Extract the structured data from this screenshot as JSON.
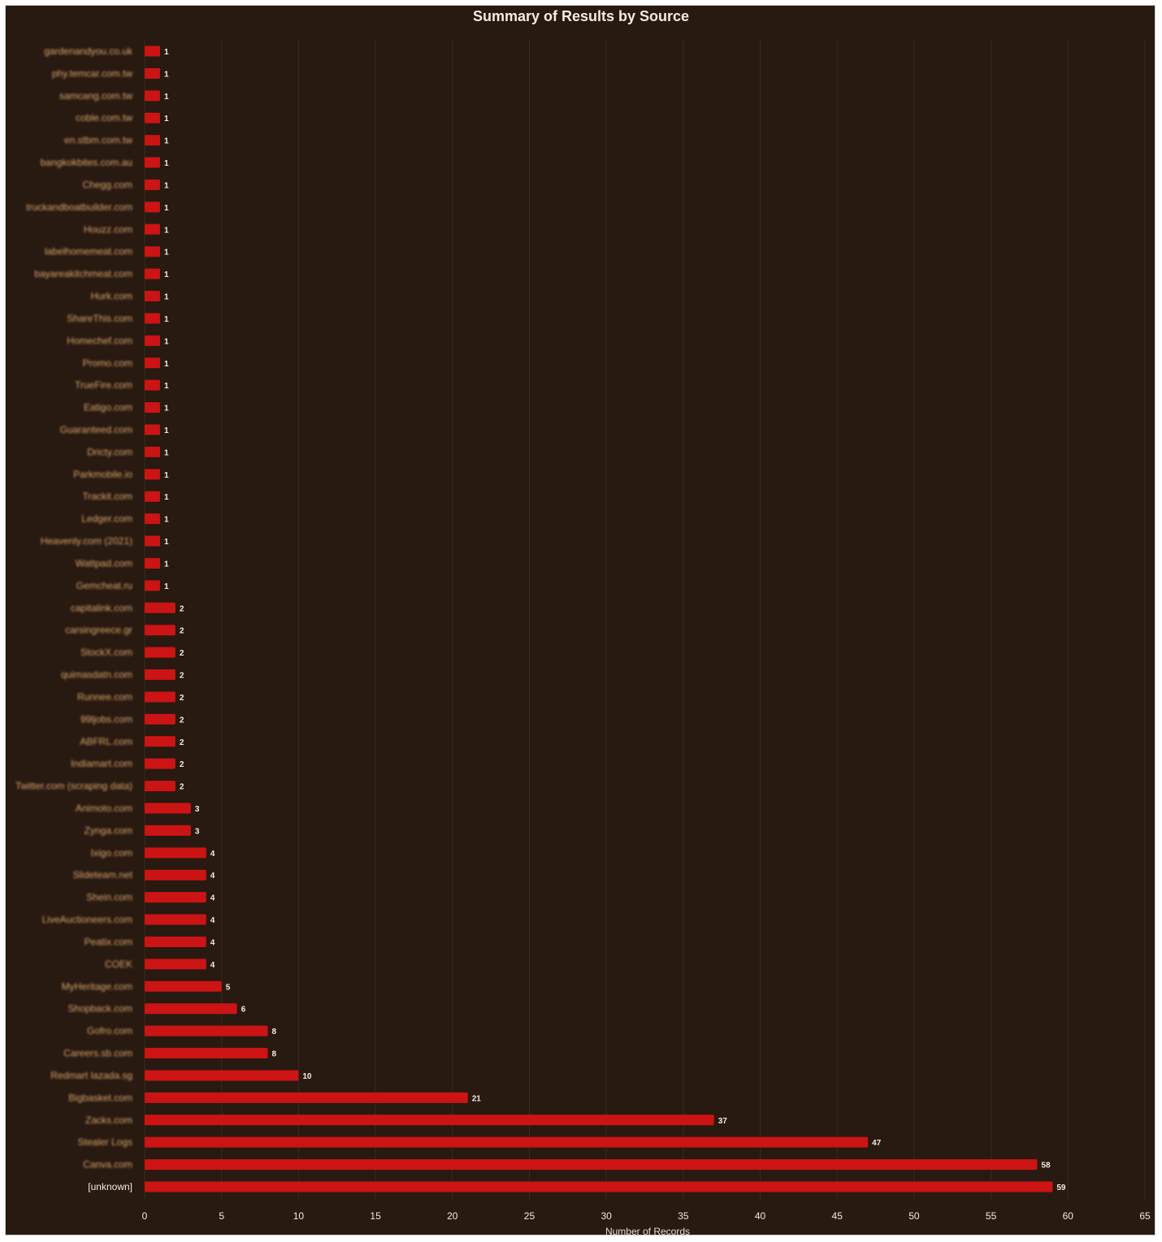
{
  "colors": {
    "background": "#281911",
    "bar": "#cc1414",
    "category_text": "#d9a56a",
    "text": "#f3ece4",
    "grid": "#3a2a1f"
  },
  "chart_data": {
    "type": "bar",
    "orientation": "horizontal",
    "title": "Summary of Results by Source",
    "xlabel": "Number of Records",
    "ylabel": "",
    "xlim": [
      0,
      65
    ],
    "xticks": [
      0,
      5,
      10,
      15,
      20,
      25,
      30,
      35,
      40,
      45,
      50,
      55,
      60,
      65
    ],
    "grid": "vertical",
    "legend": "none",
    "categories": [
      "gardenandyou.co.uk",
      "phy.temcar.com.tw",
      "samcang.com.tw",
      "coble.com.tw",
      "en.stbm.com.tw",
      "bangkokbites.com.au",
      "Chegg.com",
      "truckandboatbuilder.com",
      "Houzz.com",
      "labelhomemeat.com",
      "bayareakitchmeat.com",
      "Hurk.com",
      "ShareThis.com",
      "Homechef.com",
      "Promo.com",
      "TrueFire.com",
      "Eatigo.com",
      "Guaranteed.com",
      "Dricty.com",
      "Parkmobile.io",
      "Trackit.com",
      "Ledger.com",
      "Heavenly.com (2021)",
      "Wattpad.com",
      "Gemcheat.ru",
      "capitalink.com",
      "carsingreece.gr",
      "StockX.com",
      "quimasdatn.com",
      "Runnee.com",
      "99ljobs.com",
      "ABFRL.com",
      "Indiamart.com",
      "Twitter.com (scraping data)",
      "Animoto.com",
      "Zynga.com",
      "Ixigo.com",
      "Slideteam.net",
      "Shein.com",
      "LiveAuctioneers.com",
      "Peatix.com",
      "COEK",
      "MyHeritage.com",
      "Shopback.com",
      "Gofro.com",
      "Careers.sb.com",
      "Redmart lazada.sg",
      "Bigbasket.com",
      "Zacks.com",
      "Stealer Logs",
      "Canva.com",
      "[unknown]"
    ],
    "values": [
      1,
      1,
      1,
      1,
      1,
      1,
      1,
      1,
      1,
      1,
      1,
      1,
      1,
      1,
      1,
      1,
      1,
      1,
      1,
      1,
      1,
      1,
      1,
      1,
      1,
      2,
      2,
      2,
      2,
      2,
      2,
      2,
      2,
      2,
      3,
      3,
      4,
      4,
      4,
      4,
      4,
      4,
      5,
      6,
      8,
      8,
      10,
      21,
      37,
      47,
      58,
      59
    ]
  }
}
